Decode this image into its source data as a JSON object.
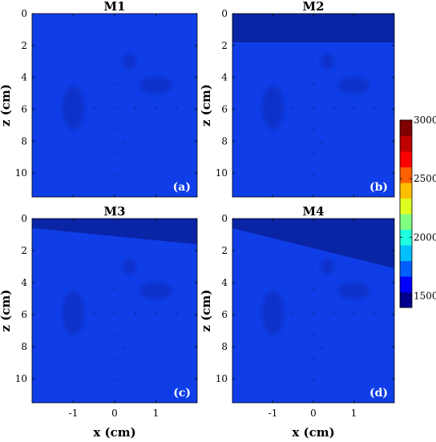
{
  "chart_data": {
    "type": "heatmap",
    "panels": [
      {
        "title": "M1",
        "label": "(a)",
        "top_layer_depth": [
          0,
          0
        ],
        "top_layer_value": 1400,
        "background_value": 1500
      },
      {
        "title": "M2",
        "label": "(b)",
        "top_layer_depth": [
          1.8,
          1.8
        ],
        "top_layer_value": 1400,
        "background_value": 1500
      },
      {
        "title": "M3",
        "label": "(c)",
        "top_layer_depth": [
          0.6,
          1.6
        ],
        "top_layer_value": 1400,
        "background_value": 1500
      },
      {
        "title": "M4",
        "label": "(d)",
        "top_layer_depth": [
          0.6,
          3.1
        ],
        "top_layer_value": 1400,
        "background_value": 1500
      }
    ],
    "xlim": [
      -2,
      2
    ],
    "zlim": [
      0,
      11.5
    ],
    "x_ticks": [
      {
        "value": -1,
        "label": "-1"
      },
      {
        "value": 0,
        "label": "0"
      },
      {
        "value": 1,
        "label": "1"
      }
    ],
    "z_ticks": [
      {
        "value": 0,
        "label": "0"
      },
      {
        "value": 2,
        "label": "2"
      },
      {
        "value": 4,
        "label": "4"
      },
      {
        "value": 6,
        "label": "6"
      },
      {
        "value": 8,
        "label": "8"
      },
      {
        "value": 10,
        "label": "10"
      }
    ],
    "xlabel": "x (cm)",
    "zlabel": "z (cm)",
    "inclusions": [
      {
        "shape": "ellipse",
        "cx": -1.0,
        "cz": 5.9,
        "rx": 0.27,
        "rz": 1.4
      },
      {
        "shape": "ellipse",
        "cx": 1.0,
        "cz": 4.5,
        "rx": 0.4,
        "rz": 0.55
      },
      {
        "shape": "ellipse",
        "cx": 0.35,
        "cz": 3.0,
        "rx": 0.17,
        "rz": 0.5
      }
    ],
    "point_targets": [
      {
        "x": 0,
        "z": 3.0
      },
      {
        "x": 0,
        "z": 4.4
      },
      {
        "x": 0,
        "z": 7.3
      },
      {
        "x": 0,
        "z": 8.7
      },
      {
        "x": 0,
        "z": 10.1
      },
      {
        "x": -0.5,
        "z": 5.9
      },
      {
        "x": 0,
        "z": 5.9
      },
      {
        "x": 0.5,
        "z": 5.9
      },
      {
        "x": 1.0,
        "z": 5.9
      },
      {
        "x": 1.5,
        "z": 5.9
      },
      {
        "x": 0.2,
        "z": 8.1
      }
    ],
    "colorbar": {
      "range": [
        1400,
        3000
      ],
      "ticks": [
        {
          "value": 1500,
          "label": "1500"
        },
        {
          "value": 2000,
          "label": "2000"
        },
        {
          "value": 2500,
          "label": "2500"
        },
        {
          "value": 3000,
          "label": "3000"
        }
      ],
      "colors": [
        "#00008f",
        "#0000ff",
        "#0060ff",
        "#00bfff",
        "#20ffdf",
        "#80ff80",
        "#dfff20",
        "#ffbf00",
        "#ff6000",
        "#ff0000",
        "#bf0000",
        "#800000"
      ]
    },
    "field_colors": {
      "background": "#0f3ee8",
      "top_layer": "#0a24a6",
      "inclusion": "#0b33cc",
      "point": "#0a2fb8"
    }
  }
}
